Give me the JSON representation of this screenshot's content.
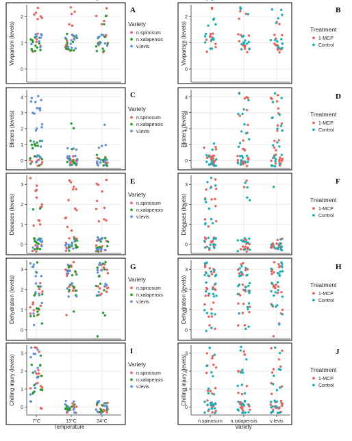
{
  "colors": {
    "red": "#E8615A",
    "green": "#1F9E2E",
    "blue": "#5B8FE0",
    "teal": "#16AFB6",
    "grid": "#E6E6E6",
    "axis": "#333333",
    "text": "#222222",
    "panel_border": "#000000"
  },
  "variety_legend": {
    "title": "Variety",
    "entries": [
      "n.spinosum",
      "n.xalapensis",
      "v.levis"
    ],
    "colors": [
      "red",
      "green",
      "blue"
    ]
  },
  "treatment_legend": {
    "title": "Treatment",
    "entries": [
      "1-MCP",
      "Control"
    ],
    "colors": [
      "red",
      "teal"
    ]
  },
  "chart_data": [
    {
      "type": "scatter",
      "panel": "A",
      "ylabel": "Viviparism (levels)",
      "xlabel": "",
      "categories": [
        "7°C",
        "13°C",
        "24°C"
      ],
      "show_x_ticks": false,
      "yticks": [
        0,
        1,
        2
      ],
      "ylim": [
        -0.5,
        2.45
      ],
      "legend_type": "variety",
      "series": [
        {
          "name": "n.spinosum",
          "color": "red",
          "counts": [
            [
              0,
              6,
              6,
              6
            ],
            [
              0,
              7,
              5,
              7
            ],
            [
              0,
              6,
              5,
              6
            ]
          ]
        },
        {
          "name": "n.xalapensis",
          "color": "green",
          "counts": [
            [
              0,
              11,
              0,
              0
            ],
            [
              0,
              12,
              0,
              0
            ],
            [
              0,
              9,
              2,
              5
            ]
          ]
        },
        {
          "name": "v.levis",
          "color": "blue",
          "counts": [
            [
              0,
              9,
              0,
              0
            ],
            [
              0,
              10,
              0,
              0
            ],
            [
              0,
              8,
              0,
              0
            ]
          ]
        }
      ]
    },
    {
      "type": "scatter",
      "panel": "B",
      "ylabel": "Viviparism (levels)",
      "xlabel": "",
      "categories": [
        "n.spinosum",
        "n.xalapensis",
        "v.levis"
      ],
      "show_x_ticks": false,
      "yticks": [
        0,
        1,
        2
      ],
      "ylim": [
        -0.5,
        2.45
      ],
      "legend_type": "treatment",
      "series": [
        {
          "name": "1-MCP",
          "color": "red",
          "counts": [
            [
              0,
              10,
              2,
              3
            ],
            [
              0,
              10,
              4,
              3
            ],
            [
              0,
              12,
              2,
              2
            ]
          ]
        },
        {
          "name": "Control",
          "color": "teal",
          "counts": [
            [
              0,
              8,
              4,
              7
            ],
            [
              0,
              11,
              3,
              5
            ],
            [
              0,
              8,
              5,
              9
            ]
          ]
        }
      ]
    },
    {
      "type": "scatter",
      "panel": "C",
      "ylabel": "Blisters (levels)",
      "xlabel": "",
      "categories": [
        "7°C",
        "13°C",
        "24°C"
      ],
      "show_x_ticks": false,
      "yticks": [
        0,
        1,
        2,
        3,
        4
      ],
      "ylim": [
        -0.5,
        4.45
      ],
      "legend_type": "variety",
      "series": [
        {
          "name": "n.spinosum",
          "color": "red",
          "counts": [
            [
              9,
              0,
              0,
              0,
              0
            ],
            [
              10,
              0,
              0,
              0,
              0
            ],
            [
              10,
              0,
              0,
              0,
              0
            ]
          ]
        },
        {
          "name": "n.xalapensis",
          "color": "green",
          "counts": [
            [
              8,
              9,
              0,
              0,
              0
            ],
            [
              10,
              1,
              2,
              0,
              0
            ],
            [
              9,
              0,
              0,
              0,
              0
            ]
          ]
        },
        {
          "name": "v.levis",
          "color": "blue",
          "counts": [
            [
              5,
              3,
              4,
              6,
              5
            ],
            [
              8,
              3,
              0,
              0,
              0
            ],
            [
              8,
              3,
              1,
              0,
              0
            ]
          ]
        }
      ]
    },
    {
      "type": "scatter",
      "panel": "D",
      "ylabel": "Blisters (levels)",
      "xlabel": "",
      "categories": [
        "n.spinosum",
        "n.xalapensis",
        "v.levis"
      ],
      "show_x_ticks": false,
      "yticks": [
        0,
        1,
        2,
        3,
        4
      ],
      "ylim": [
        -0.5,
        4.45
      ],
      "legend_type": "treatment",
      "series": [
        {
          "name": "1-MCP",
          "color": "red",
          "counts": [
            [
              14,
              3,
              0,
              0,
              0
            ],
            [
              13,
              4,
              2,
              2,
              4
            ],
            [
              13,
              4,
              3,
              2,
              4
            ]
          ]
        },
        {
          "name": "Control",
          "color": "teal",
          "counts": [
            [
              13,
              2,
              0,
              0,
              0
            ],
            [
              11,
              3,
              3,
              3,
              2
            ],
            [
              12,
              3,
              3,
              3,
              3
            ]
          ]
        }
      ]
    },
    {
      "type": "scatter",
      "panel": "E",
      "ylabel": "Diseases (levels)",
      "xlabel": "",
      "categories": [
        "7°C",
        "13°C",
        "24°C"
      ],
      "show_x_ticks": false,
      "yticks": [
        0,
        1,
        2,
        3
      ],
      "ylim": [
        -0.45,
        3.45
      ],
      "legend_type": "variety",
      "series": [
        {
          "name": "n.spinosum",
          "color": "red",
          "counts": [
            [
              8,
              4,
              4,
              4
            ],
            [
              9,
              4,
              3,
              5
            ],
            [
              9,
              3,
              3,
              4
            ]
          ]
        },
        {
          "name": "n.xalapensis",
          "color": "green",
          "counts": [
            [
              10,
              0,
              2,
              0
            ],
            [
              10,
              0,
              0,
              0
            ],
            [
              10,
              0,
              0,
              0
            ]
          ]
        },
        {
          "name": "v.levis",
          "color": "blue",
          "counts": [
            [
              8,
              0,
              0,
              0
            ],
            [
              8,
              0,
              0,
              0
            ],
            [
              8,
              0,
              0,
              0
            ]
          ]
        }
      ]
    },
    {
      "type": "scatter",
      "panel": "F",
      "ylabel": "Diseases (levels)",
      "xlabel": "",
      "categories": [
        "n.spinosum",
        "n.xalapensis",
        "v.levis"
      ],
      "show_x_ticks": false,
      "yticks": [
        0,
        1,
        2,
        3
      ],
      "ylim": [
        -0.45,
        3.45
      ],
      "legend_type": "treatment",
      "series": [
        {
          "name": "1-MCP",
          "color": "red",
          "counts": [
            [
              12,
              3,
              4,
              4
            ],
            [
              12,
              0,
              0,
              2
            ],
            [
              13,
              0,
              0,
              0
            ]
          ]
        },
        {
          "name": "Control",
          "color": "teal",
          "counts": [
            [
              10,
              4,
              3,
              4
            ],
            [
              11,
              0,
              2,
              2
            ],
            [
              11,
              0,
              0,
              1
            ]
          ]
        }
      ]
    },
    {
      "type": "scatter",
      "panel": "G",
      "ylabel": "Dehydration (levels)",
      "xlabel": "",
      "categories": [
        "7°C",
        "13°C",
        "24°C"
      ],
      "show_x_ticks": false,
      "yticks": [
        0,
        1,
        2,
        3
      ],
      "ylim": [
        -0.45,
        3.45
      ],
      "legend_type": "variety",
      "series": [
        {
          "name": "n.spinosum",
          "color": "red",
          "counts": [
            [
              0,
              8,
              5,
              0
            ],
            [
              0,
              1,
              6,
              8
            ],
            [
              0,
              0,
              8,
              8
            ]
          ]
        },
        {
          "name": "n.xalapensis",
          "color": "green",
          "counts": [
            [
              1,
              6,
              4,
              3
            ],
            [
              0,
              1,
              5,
              7
            ],
            [
              1,
              2,
              4,
              6
            ]
          ]
        },
        {
          "name": "v.levis",
          "color": "blue",
          "counts": [
            [
              1,
              2,
              4,
              6
            ],
            [
              0,
              0,
              6,
              5
            ],
            [
              0,
              0,
              5,
              6
            ]
          ]
        }
      ]
    },
    {
      "type": "scatter",
      "panel": "H",
      "ylabel": "Dehydration (levels)",
      "xlabel": "",
      "categories": [
        "n.spinosum",
        "n.xalapensis",
        "v.levis"
      ],
      "show_x_ticks": false,
      "yticks": [
        0,
        1,
        2,
        3
      ],
      "ylim": [
        -0.45,
        3.45
      ],
      "legend_type": "treatment",
      "series": [
        {
          "name": "1-MCP",
          "color": "red",
          "counts": [
            [
              2,
              5,
              9,
              9
            ],
            [
              2,
              5,
              8,
              8
            ],
            [
              2,
              4,
              9,
              9
            ]
          ]
        },
        {
          "name": "Control",
          "color": "teal",
          "counts": [
            [
              2,
              4,
              8,
              9
            ],
            [
              2,
              4,
              9,
              9
            ],
            [
              1,
              4,
              8,
              10
            ]
          ]
        }
      ]
    },
    {
      "type": "scatter",
      "panel": "I",
      "ylabel": "Chilling injury (levels)",
      "xlabel": "Temperature",
      "categories": [
        "7°C",
        "13°C",
        "24°C"
      ],
      "show_x_ticks": true,
      "yticks": [
        0,
        1,
        2,
        3
      ],
      "ylim": [
        -0.45,
        3.45
      ],
      "legend_type": "variety",
      "series": [
        {
          "name": "n.spinosum",
          "color": "red",
          "counts": [
            [
              2,
              4,
              5,
              3
            ],
            [
              11,
              0,
              0,
              0
            ],
            [
              11,
              0,
              0,
              0
            ]
          ]
        },
        {
          "name": "n.xalapensis",
          "color": "green",
          "counts": [
            [
              1,
              6,
              6,
              1
            ],
            [
              9,
              0,
              0,
              0
            ],
            [
              9,
              0,
              0,
              0
            ]
          ]
        },
        {
          "name": "v.levis",
          "color": "blue",
          "counts": [
            [
              1,
              3,
              4,
              5
            ],
            [
              9,
              0,
              0,
              0
            ],
            [
              9,
              0,
              0,
              0
            ]
          ]
        }
      ]
    },
    {
      "type": "scatter",
      "panel": "J",
      "ylabel": "Chilling injury (levels)",
      "xlabel": "Variety",
      "categories": [
        "n.spinosum",
        "n.xalapensis",
        "v.levis"
      ],
      "show_x_ticks": true,
      "yticks": [
        0,
        1,
        2,
        3
      ],
      "ylim": [
        -0.45,
        3.45
      ],
      "legend_type": "treatment",
      "series": [
        {
          "name": "1-MCP",
          "color": "red",
          "counts": [
            [
              13,
              4,
              4,
              3
            ],
            [
              13,
              3,
              3,
              3
            ],
            [
              13,
              4,
              3,
              3
            ]
          ]
        },
        {
          "name": "Control",
          "color": "teal",
          "counts": [
            [
              13,
              3,
              3,
              2
            ],
            [
              13,
              3,
              3,
              3
            ],
            [
              12,
              3,
              3,
              2
            ]
          ]
        }
      ]
    }
  ]
}
